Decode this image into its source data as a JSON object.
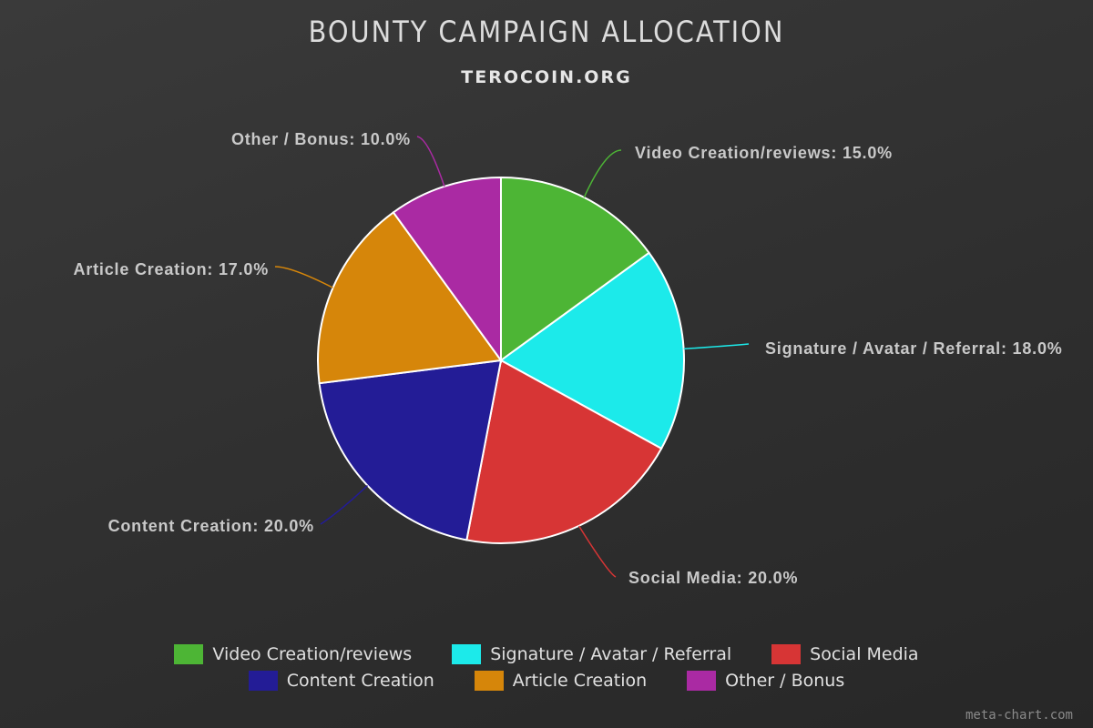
{
  "chart_data": {
    "type": "pie",
    "title": "BOUNTY CAMPAIGN ALLOCATION",
    "subtitle": "TEROCOIN.ORG",
    "slices": [
      {
        "label": "Video Creation/reviews",
        "value": 15.0,
        "display": "Video Creation/reviews: 15.0%",
        "legend": "Video Creation/reviews",
        "color": "#4db535"
      },
      {
        "label": "Signature / Avatar / Referral",
        "value": 18.0,
        "display": "Signature / Avatar / Referral: 18.0%",
        "legend": "Signature / Avatar / Referral",
        "color": "#1ceaea"
      },
      {
        "label": "Social Media",
        "value": 20.0,
        "display": "Social Media: 20.0%",
        "legend": "Social Media",
        "color": "#d73535"
      },
      {
        "label": "Content Creation",
        "value": 20.0,
        "display": "Content Creation: 20.0%",
        "legend": "Content Creation",
        "color": "#231c96"
      },
      {
        "label": "Article Creation",
        "value": 17.0,
        "display": "Article Creation: 17.0%",
        "legend": "Article Creation",
        "color": "#d6860a"
      },
      {
        "label": "Other / Bonus",
        "value": 10.0,
        "display": "Other / Bonus: 10.0%",
        "legend": "Other / Bonus",
        "color": "#aa2aa3"
      }
    ],
    "legend_position": "bottom"
  },
  "watermark": "meta-chart.com"
}
